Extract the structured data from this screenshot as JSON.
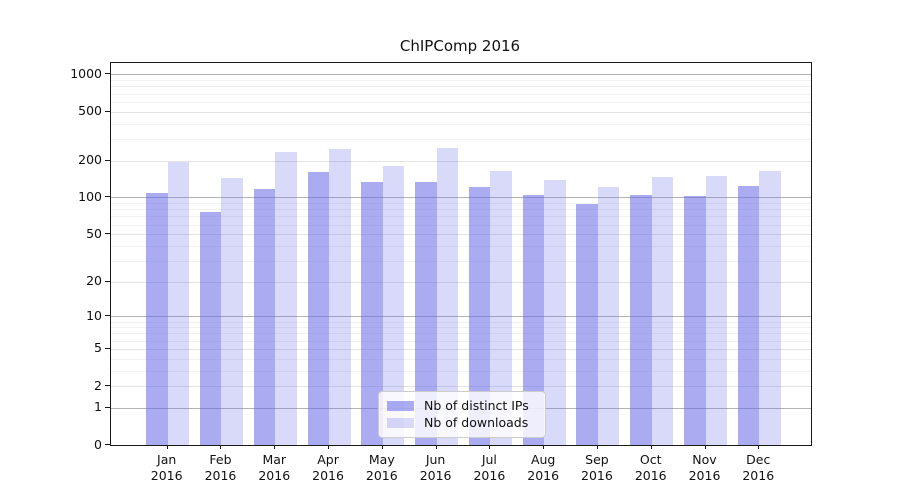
{
  "chart_data": {
    "type": "bar",
    "title": "ChIPComp 2016",
    "categories": [
      "Jan",
      "Feb",
      "Mar",
      "Apr",
      "May",
      "Jun",
      "Jul",
      "Aug",
      "Sep",
      "Oct",
      "Nov",
      "Dec"
    ],
    "category_year": "2016",
    "series": [
      {
        "name": "Nb of distinct IPs",
        "color": "rgba(102,102,232,0.55)",
        "values": [
          109,
          76,
          118,
          162,
          134,
          134,
          122,
          104,
          89,
          105,
          103,
          123
        ]
      },
      {
        "name": "Nb of downloads",
        "color": "rgba(102,102,232,0.25)",
        "values": [
          196,
          143,
          235,
          248,
          179,
          251,
          166,
          139,
          121,
          148,
          151,
          166
        ]
      }
    ],
    "y_axis": {
      "scale": "log10(value+1)",
      "tick_values": [
        0,
        1,
        2,
        5,
        10,
        20,
        50,
        100,
        200,
        500,
        1000
      ],
      "minor_tick_values": [
        3,
        4,
        6,
        7,
        8,
        9,
        30,
        40,
        60,
        70,
        80,
        90,
        300,
        400,
        600,
        700,
        800,
        900
      ],
      "power_tick_values": [
        1,
        10,
        100,
        1000
      ],
      "range_top": 1240
    },
    "grid": true,
    "legend": {
      "position": "lower center"
    }
  }
}
